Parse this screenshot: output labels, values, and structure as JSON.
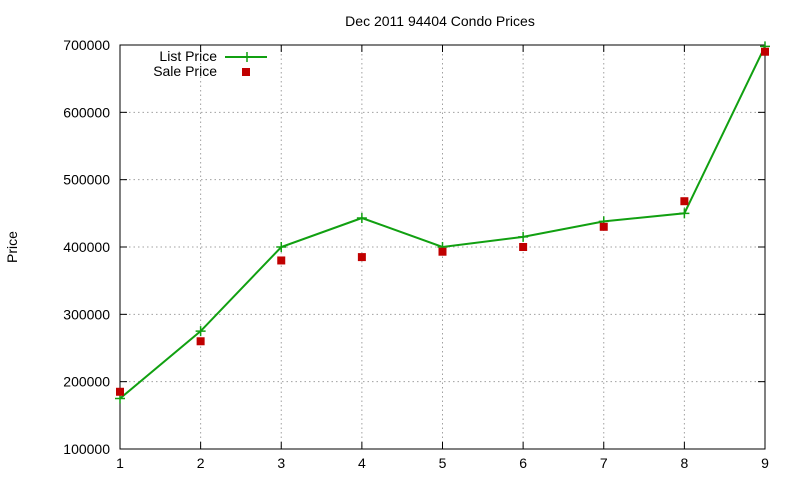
{
  "chart_data": {
    "type": "line",
    "title": "Dec 2011 94404 Condo Prices",
    "xlabel": "",
    "ylabel": "Price",
    "x": [
      1,
      2,
      3,
      4,
      5,
      6,
      7,
      8,
      9
    ],
    "x_ticks": [
      "1",
      "2",
      "3",
      "4",
      "5",
      "6",
      "7",
      "8",
      "9"
    ],
    "y_ticks": [
      "100000",
      "200000",
      "300000",
      "400000",
      "500000",
      "600000",
      "700000"
    ],
    "xlim": [
      1,
      9
    ],
    "ylim": [
      100000,
      700000
    ],
    "grid": true,
    "legend_position": "top-left",
    "series": [
      {
        "name": "List Price",
        "style": "line+cross",
        "color": "#11a011",
        "values": [
          175000,
          275000,
          400000,
          443000,
          400000,
          415000,
          438000,
          450000,
          698000
        ]
      },
      {
        "name": "Sale Price",
        "style": "square-markers",
        "color": "#c00000",
        "values": [
          185000,
          260000,
          380000,
          385000,
          393000,
          400000,
          430000,
          468000,
          690000
        ]
      }
    ]
  }
}
